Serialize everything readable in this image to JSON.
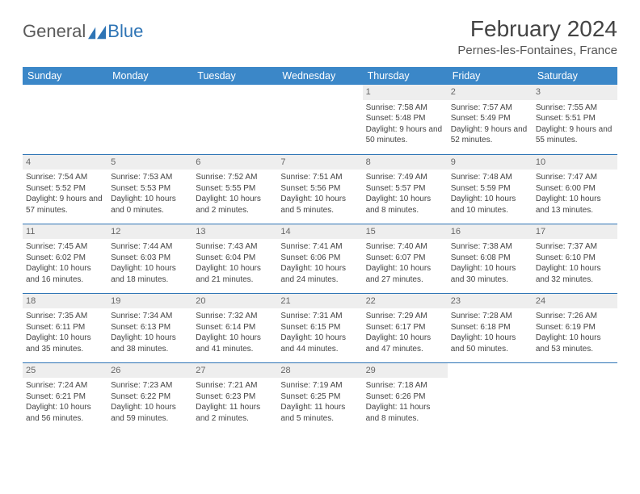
{
  "brand": {
    "general": "General",
    "blue": "Blue"
  },
  "title": "February 2024",
  "location": "Pernes-les-Fontaines, France",
  "colors": {
    "header_bg": "#3b87c8",
    "header_text": "#ffffff",
    "row_divider": "#2e74b5",
    "daynum_bg": "#eeeeee",
    "text": "#444444",
    "brand_gray": "#5a5a5a",
    "brand_blue": "#2e74b5"
  },
  "weekdays": [
    "Sunday",
    "Monday",
    "Tuesday",
    "Wednesday",
    "Thursday",
    "Friday",
    "Saturday"
  ],
  "weeks": [
    [
      {
        "day": null
      },
      {
        "day": null
      },
      {
        "day": null
      },
      {
        "day": null
      },
      {
        "day": "1",
        "sunrise": "Sunrise: 7:58 AM",
        "sunset": "Sunset: 5:48 PM",
        "daylight": "Daylight: 9 hours and 50 minutes."
      },
      {
        "day": "2",
        "sunrise": "Sunrise: 7:57 AM",
        "sunset": "Sunset: 5:49 PM",
        "daylight": "Daylight: 9 hours and 52 minutes."
      },
      {
        "day": "3",
        "sunrise": "Sunrise: 7:55 AM",
        "sunset": "Sunset: 5:51 PM",
        "daylight": "Daylight: 9 hours and 55 minutes."
      }
    ],
    [
      {
        "day": "4",
        "sunrise": "Sunrise: 7:54 AM",
        "sunset": "Sunset: 5:52 PM",
        "daylight": "Daylight: 9 hours and 57 minutes."
      },
      {
        "day": "5",
        "sunrise": "Sunrise: 7:53 AM",
        "sunset": "Sunset: 5:53 PM",
        "daylight": "Daylight: 10 hours and 0 minutes."
      },
      {
        "day": "6",
        "sunrise": "Sunrise: 7:52 AM",
        "sunset": "Sunset: 5:55 PM",
        "daylight": "Daylight: 10 hours and 2 minutes."
      },
      {
        "day": "7",
        "sunrise": "Sunrise: 7:51 AM",
        "sunset": "Sunset: 5:56 PM",
        "daylight": "Daylight: 10 hours and 5 minutes."
      },
      {
        "day": "8",
        "sunrise": "Sunrise: 7:49 AM",
        "sunset": "Sunset: 5:57 PM",
        "daylight": "Daylight: 10 hours and 8 minutes."
      },
      {
        "day": "9",
        "sunrise": "Sunrise: 7:48 AM",
        "sunset": "Sunset: 5:59 PM",
        "daylight": "Daylight: 10 hours and 10 minutes."
      },
      {
        "day": "10",
        "sunrise": "Sunrise: 7:47 AM",
        "sunset": "Sunset: 6:00 PM",
        "daylight": "Daylight: 10 hours and 13 minutes."
      }
    ],
    [
      {
        "day": "11",
        "sunrise": "Sunrise: 7:45 AM",
        "sunset": "Sunset: 6:02 PM",
        "daylight": "Daylight: 10 hours and 16 minutes."
      },
      {
        "day": "12",
        "sunrise": "Sunrise: 7:44 AM",
        "sunset": "Sunset: 6:03 PM",
        "daylight": "Daylight: 10 hours and 18 minutes."
      },
      {
        "day": "13",
        "sunrise": "Sunrise: 7:43 AM",
        "sunset": "Sunset: 6:04 PM",
        "daylight": "Daylight: 10 hours and 21 minutes."
      },
      {
        "day": "14",
        "sunrise": "Sunrise: 7:41 AM",
        "sunset": "Sunset: 6:06 PM",
        "daylight": "Daylight: 10 hours and 24 minutes."
      },
      {
        "day": "15",
        "sunrise": "Sunrise: 7:40 AM",
        "sunset": "Sunset: 6:07 PM",
        "daylight": "Daylight: 10 hours and 27 minutes."
      },
      {
        "day": "16",
        "sunrise": "Sunrise: 7:38 AM",
        "sunset": "Sunset: 6:08 PM",
        "daylight": "Daylight: 10 hours and 30 minutes."
      },
      {
        "day": "17",
        "sunrise": "Sunrise: 7:37 AM",
        "sunset": "Sunset: 6:10 PM",
        "daylight": "Daylight: 10 hours and 32 minutes."
      }
    ],
    [
      {
        "day": "18",
        "sunrise": "Sunrise: 7:35 AM",
        "sunset": "Sunset: 6:11 PM",
        "daylight": "Daylight: 10 hours and 35 minutes."
      },
      {
        "day": "19",
        "sunrise": "Sunrise: 7:34 AM",
        "sunset": "Sunset: 6:13 PM",
        "daylight": "Daylight: 10 hours and 38 minutes."
      },
      {
        "day": "20",
        "sunrise": "Sunrise: 7:32 AM",
        "sunset": "Sunset: 6:14 PM",
        "daylight": "Daylight: 10 hours and 41 minutes."
      },
      {
        "day": "21",
        "sunrise": "Sunrise: 7:31 AM",
        "sunset": "Sunset: 6:15 PM",
        "daylight": "Daylight: 10 hours and 44 minutes."
      },
      {
        "day": "22",
        "sunrise": "Sunrise: 7:29 AM",
        "sunset": "Sunset: 6:17 PM",
        "daylight": "Daylight: 10 hours and 47 minutes."
      },
      {
        "day": "23",
        "sunrise": "Sunrise: 7:28 AM",
        "sunset": "Sunset: 6:18 PM",
        "daylight": "Daylight: 10 hours and 50 minutes."
      },
      {
        "day": "24",
        "sunrise": "Sunrise: 7:26 AM",
        "sunset": "Sunset: 6:19 PM",
        "daylight": "Daylight: 10 hours and 53 minutes."
      }
    ],
    [
      {
        "day": "25",
        "sunrise": "Sunrise: 7:24 AM",
        "sunset": "Sunset: 6:21 PM",
        "daylight": "Daylight: 10 hours and 56 minutes."
      },
      {
        "day": "26",
        "sunrise": "Sunrise: 7:23 AM",
        "sunset": "Sunset: 6:22 PM",
        "daylight": "Daylight: 10 hours and 59 minutes."
      },
      {
        "day": "27",
        "sunrise": "Sunrise: 7:21 AM",
        "sunset": "Sunset: 6:23 PM",
        "daylight": "Daylight: 11 hours and 2 minutes."
      },
      {
        "day": "28",
        "sunrise": "Sunrise: 7:19 AM",
        "sunset": "Sunset: 6:25 PM",
        "daylight": "Daylight: 11 hours and 5 minutes."
      },
      {
        "day": "29",
        "sunrise": "Sunrise: 7:18 AM",
        "sunset": "Sunset: 6:26 PM",
        "daylight": "Daylight: 11 hours and 8 minutes."
      },
      {
        "day": null
      },
      {
        "day": null
      }
    ]
  ]
}
